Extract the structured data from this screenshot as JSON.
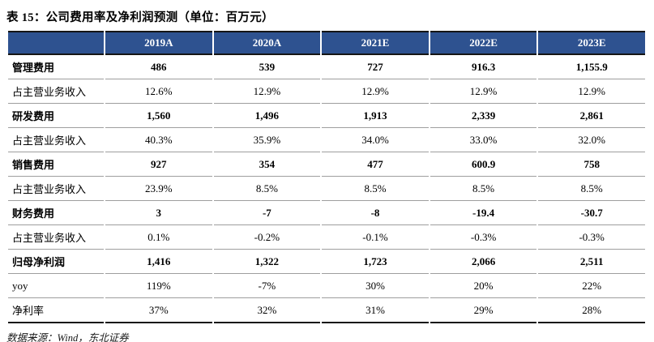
{
  "page": {
    "title": "表 15：公司费用率及净利润预测（单位：百万元）",
    "source_note": "数据来源：Wind，东北证券"
  },
  "colors": {
    "header_bg": "#2E5290",
    "header_text": "#FFFFFF",
    "row_divider": "#9E9E9E",
    "table_frame": "#151515"
  },
  "table": {
    "columns": [
      "",
      "2019A",
      "2020A",
      "2021E",
      "2022E",
      "2023E"
    ],
    "rows": [
      {
        "bold": true,
        "cells": [
          "管理费用",
          "486",
          "539",
          "727",
          "916.3",
          "1,155.9"
        ]
      },
      {
        "bold": false,
        "cells": [
          "占主营业务收入",
          "12.6%",
          "12.9%",
          "12.9%",
          "12.9%",
          "12.9%"
        ]
      },
      {
        "bold": true,
        "cells": [
          "研发费用",
          "1,560",
          "1,496",
          "1,913",
          "2,339",
          "2,861"
        ]
      },
      {
        "bold": false,
        "cells": [
          "占主营业务收入",
          "40.3%",
          "35.9%",
          "34.0%",
          "33.0%",
          "32.0%"
        ]
      },
      {
        "bold": true,
        "cells": [
          "销售费用",
          "927",
          "354",
          "477",
          "600.9",
          "758"
        ]
      },
      {
        "bold": false,
        "cells": [
          "占主营业务收入",
          "23.9%",
          "8.5%",
          "8.5%",
          "8.5%",
          "8.5%"
        ]
      },
      {
        "bold": true,
        "cells": [
          "财务费用",
          "3",
          "-7",
          "-8",
          "-19.4",
          "-30.7"
        ]
      },
      {
        "bold": false,
        "cells": [
          "占主营业务收入",
          "0.1%",
          "-0.2%",
          "-0.1%",
          "-0.3%",
          "-0.3%"
        ]
      },
      {
        "bold": true,
        "cells": [
          "归母净利润",
          "1,416",
          "1,322",
          "1,723",
          "2,066",
          "2,511"
        ]
      },
      {
        "bold": false,
        "cells": [
          "yoy",
          "119%",
          "-7%",
          "30%",
          "20%",
          "22%"
        ]
      },
      {
        "bold": false,
        "cells": [
          "净利率",
          "37%",
          "32%",
          "31%",
          "29%",
          "28%"
        ]
      }
    ]
  }
}
